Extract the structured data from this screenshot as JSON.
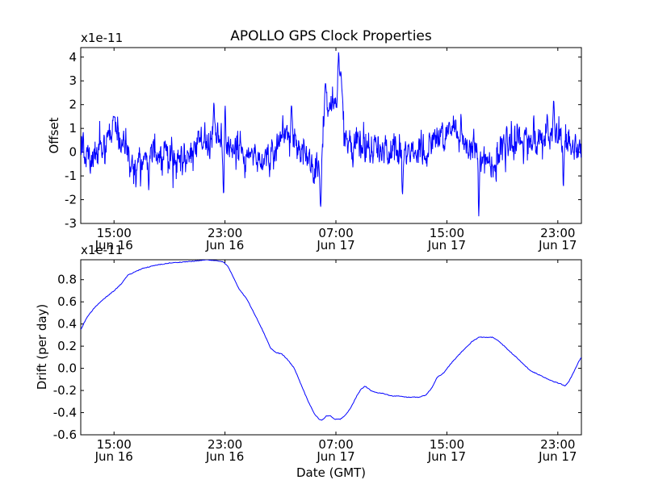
{
  "figure": {
    "title": "APOLLO GPS Clock Properties",
    "xlabel": "Date (GMT)",
    "line_color": "#0000ff"
  },
  "chart_data": [
    {
      "type": "line",
      "name": "offset",
      "ylabel": "Offset",
      "multiplier": "x1e-11",
      "xlim": [
        12.6,
        48.7
      ],
      "ylim": [
        -3,
        4.4
      ],
      "yticks": [
        -3,
        -2,
        -1,
        0,
        1,
        2,
        3,
        4
      ],
      "ytick_labels": [
        "-3",
        "-2",
        "-1",
        "0",
        "1",
        "2",
        "3",
        "4"
      ],
      "xticks": [
        15,
        23,
        31,
        39,
        47
      ],
      "xtick_labels": [
        {
          "time": "15:00",
          "date": "Jun 16"
        },
        {
          "time": "23:00",
          "date": "Jun 16"
        },
        {
          "time": "07:00",
          "date": "Jun 17"
        },
        {
          "time": "15:00",
          "date": "Jun 17"
        },
        {
          "time": "23:00",
          "date": "Jun 17"
        }
      ],
      "noise_sigma": 0.35,
      "base": [
        [
          12.6,
          0.1
        ],
        [
          13.5,
          -0.1
        ],
        [
          15.0,
          0.9
        ],
        [
          15.5,
          0.2
        ],
        [
          16.5,
          -0.5
        ],
        [
          18.0,
          0.0
        ],
        [
          20.0,
          -0.2
        ],
        [
          22.0,
          0.6
        ],
        [
          23.5,
          0.3
        ],
        [
          25.0,
          -0.3
        ],
        [
          26.5,
          0.1
        ],
        [
          27.5,
          0.9
        ],
        [
          28.5,
          0.2
        ],
        [
          29.5,
          -0.8
        ],
        [
          29.9,
          0.0
        ],
        [
          30.3,
          1.8
        ],
        [
          31.0,
          2.2
        ],
        [
          31.5,
          0.8
        ],
        [
          32.5,
          0.3
        ],
        [
          34.0,
          0.0
        ],
        [
          36.0,
          -0.1
        ],
        [
          38.0,
          0.3
        ],
        [
          39.5,
          0.9
        ],
        [
          40.5,
          0.3
        ],
        [
          41.5,
          -0.1
        ],
        [
          42.5,
          -0.6
        ],
        [
          43.0,
          0.0
        ],
        [
          44.0,
          0.6
        ],
        [
          46.0,
          0.5
        ],
        [
          47.0,
          0.8
        ],
        [
          48.0,
          0.2
        ],
        [
          48.7,
          0.1
        ]
      ],
      "features": [
        {
          "x": 31.2,
          "y": 4.4,
          "width": 0.08
        },
        {
          "x": 31.35,
          "y": 3.4,
          "width": 0.12
        },
        {
          "x": 30.25,
          "y": 2.9,
          "width": 0.1
        },
        {
          "x": 29.9,
          "y": -2.3,
          "width": 0.08
        },
        {
          "x": 41.3,
          "y": -2.7,
          "width": 0.06
        },
        {
          "x": 46.7,
          "y": 2.2,
          "width": 0.06
        },
        {
          "x": 22.2,
          "y": 2.1,
          "width": 0.06
        },
        {
          "x": 23.0,
          "y": 2.1,
          "width": 0.06
        },
        {
          "x": 27.8,
          "y": 2.0,
          "width": 0.06
        },
        {
          "x": 15.0,
          "y": 1.5,
          "width": 0.12
        },
        {
          "x": 17.5,
          "y": -1.6,
          "width": 0.06
        },
        {
          "x": 22.9,
          "y": -1.8,
          "width": 0.06
        },
        {
          "x": 35.8,
          "y": -1.8,
          "width": 0.06
        },
        {
          "x": 47.4,
          "y": -1.5,
          "width": 0.06
        }
      ]
    },
    {
      "type": "line",
      "name": "drift",
      "ylabel": "Drift (per day)",
      "multiplier": "x1e-11",
      "xlim": [
        12.6,
        48.7
      ],
      "ylim": [
        -0.6,
        0.98
      ],
      "yticks": [
        -0.6,
        -0.4,
        -0.2,
        0.0,
        0.2,
        0.4,
        0.6,
        0.8
      ],
      "ytick_labels": [
        "-0.6",
        "-0.4",
        "-0.2",
        "0.0",
        "0.2",
        "0.4",
        "0.6",
        "0.8"
      ],
      "xticks": [
        15,
        23,
        31,
        39,
        47
      ],
      "xtick_labels": [
        {
          "time": "15:00",
          "date": "Jun 16"
        },
        {
          "time": "23:00",
          "date": "Jun 16"
        },
        {
          "time": "07:00",
          "date": "Jun 17"
        },
        {
          "time": "15:00",
          "date": "Jun 17"
        },
        {
          "time": "23:00",
          "date": "Jun 17"
        }
      ],
      "points": [
        [
          12.6,
          0.35
        ],
        [
          13.0,
          0.45
        ],
        [
          13.6,
          0.55
        ],
        [
          14.3,
          0.63
        ],
        [
          15.0,
          0.7
        ],
        [
          15.5,
          0.76
        ],
        [
          16.0,
          0.84
        ],
        [
          17.0,
          0.9
        ],
        [
          18.0,
          0.93
        ],
        [
          19.0,
          0.95
        ],
        [
          20.0,
          0.96
        ],
        [
          21.0,
          0.97
        ],
        [
          21.7,
          0.98
        ],
        [
          22.4,
          0.97
        ],
        [
          22.9,
          0.96
        ],
        [
          23.2,
          0.92
        ],
        [
          23.5,
          0.85
        ],
        [
          24.0,
          0.72
        ],
        [
          24.6,
          0.62
        ],
        [
          25.3,
          0.45
        ],
        [
          25.8,
          0.32
        ],
        [
          26.3,
          0.18
        ],
        [
          26.7,
          0.14
        ],
        [
          27.1,
          0.13
        ],
        [
          27.5,
          0.08
        ],
        [
          28.0,
          0.0
        ],
        [
          28.5,
          -0.15
        ],
        [
          29.0,
          -0.3
        ],
        [
          29.5,
          -0.42
        ],
        [
          29.8,
          -0.46
        ],
        [
          30.0,
          -0.47
        ],
        [
          30.3,
          -0.43
        ],
        [
          30.6,
          -0.43
        ],
        [
          30.9,
          -0.46
        ],
        [
          31.3,
          -0.46
        ],
        [
          31.7,
          -0.42
        ],
        [
          32.1,
          -0.35
        ],
        [
          32.5,
          -0.25
        ],
        [
          32.8,
          -0.19
        ],
        [
          33.1,
          -0.16
        ],
        [
          33.5,
          -0.2
        ],
        [
          34.0,
          -0.22
        ],
        [
          34.5,
          -0.23
        ],
        [
          35.0,
          -0.25
        ],
        [
          35.5,
          -0.25
        ],
        [
          36.0,
          -0.26
        ],
        [
          36.5,
          -0.26
        ],
        [
          37.0,
          -0.26
        ],
        [
          37.5,
          -0.24
        ],
        [
          37.9,
          -0.18
        ],
        [
          38.3,
          -0.08
        ],
        [
          38.8,
          -0.04
        ],
        [
          39.2,
          0.03
        ],
        [
          40.0,
          0.14
        ],
        [
          40.8,
          0.24
        ],
        [
          41.3,
          0.28
        ],
        [
          41.8,
          0.28
        ],
        [
          42.3,
          0.28
        ],
        [
          42.8,
          0.24
        ],
        [
          43.3,
          0.18
        ],
        [
          44.0,
          0.1
        ],
        [
          45.0,
          -0.02
        ],
        [
          46.0,
          -0.08
        ],
        [
          46.7,
          -0.12
        ],
        [
          47.2,
          -0.14
        ],
        [
          47.5,
          -0.16
        ],
        [
          47.8,
          -0.12
        ],
        [
          48.2,
          -0.02
        ],
        [
          48.5,
          0.06
        ],
        [
          48.7,
          0.1
        ]
      ]
    }
  ]
}
